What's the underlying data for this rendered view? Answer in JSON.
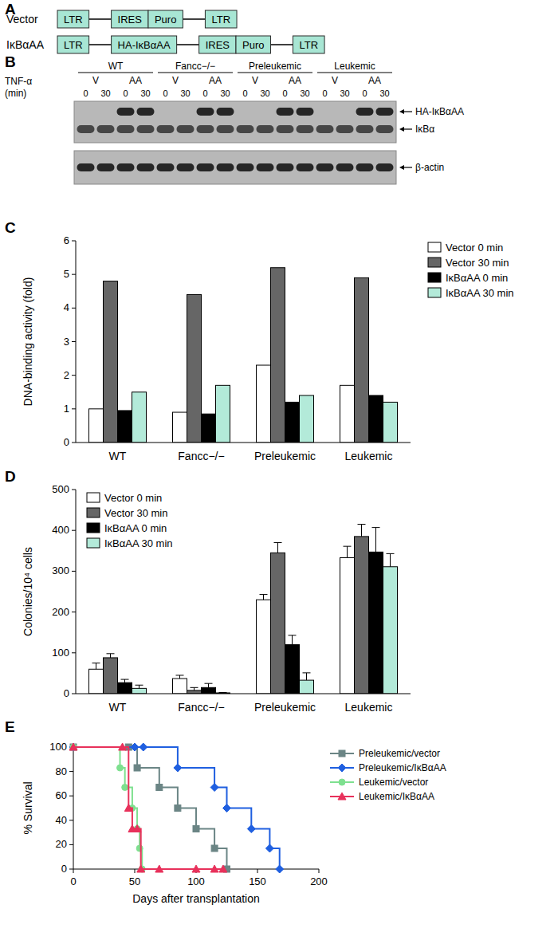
{
  "panel_a": {
    "label": "A",
    "constructs": [
      {
        "name": "Vector",
        "segments": [
          [
            "LTR"
          ],
          [
            "IRES",
            "Puro"
          ],
          [
            "LTR"
          ]
        ]
      },
      {
        "name": "IκBαAA",
        "segments": [
          [
            "LTR"
          ],
          [
            "HA-IκBαAA"
          ],
          [
            "IRES",
            "Puro"
          ],
          [
            "LTR"
          ]
        ]
      }
    ]
  },
  "panel_b": {
    "label": "B",
    "treatment": "TNF-α",
    "treatment_unit": "(min)",
    "groups": [
      {
        "name": "WT",
        "conditions": [
          {
            "name": "V",
            "times": [
              0,
              30
            ]
          },
          {
            "name": "AA",
            "times": [
              0,
              30
            ]
          }
        ]
      },
      {
        "name": "Fancc−/−",
        "conditions": [
          {
            "name": "V",
            "times": [
              0,
              30
            ]
          },
          {
            "name": "AA",
            "times": [
              0,
              30
            ]
          }
        ]
      },
      {
        "name": "Preleukemic",
        "conditions": [
          {
            "name": "V",
            "times": [
              0,
              30
            ]
          },
          {
            "name": "AA",
            "times": [
              0,
              30
            ]
          }
        ]
      },
      {
        "name": "Leukemic",
        "conditions": [
          {
            "name": "V",
            "times": [
              0,
              30
            ]
          },
          {
            "name": "AA",
            "times": [
              0,
              30
            ]
          }
        ]
      }
    ],
    "blots": [
      {
        "bands": [
          "HA-IκBαAA",
          "IκBα"
        ]
      },
      {
        "bands": [
          "β-actin"
        ]
      }
    ]
  },
  "chart_data": [
    {
      "type": "bar",
      "title": "C",
      "y_label": "DNA-binding activity (fold)",
      "categories": [
        "WT",
        "Fancc−/−",
        "Preleukemic",
        "Leukemic"
      ],
      "series": [
        {
          "name": "Vector 0 min",
          "color": "#ffffff",
          "values": [
            1.0,
            0.9,
            2.3,
            1.7
          ]
        },
        {
          "name": "Vector 30 min",
          "color": "#666666",
          "values": [
            4.8,
            4.4,
            5.2,
            4.9
          ]
        },
        {
          "name": "IκBαAA 0 min",
          "color": "#000000",
          "values": [
            0.95,
            0.85,
            1.2,
            1.4
          ]
        },
        {
          "name": "IκBαAA 30 min",
          "color": "#b3ead9",
          "values": [
            1.5,
            1.7,
            1.4,
            1.2
          ]
        }
      ],
      "ylim": [
        0,
        6
      ],
      "yticks": [
        0,
        1,
        2,
        3,
        4,
        5,
        6
      ],
      "legend": "right"
    },
    {
      "type": "bar",
      "title": "D",
      "y_label": "Colonies/10⁴ cells",
      "categories": [
        "WT",
        "Fancc−/−",
        "Preleukemic",
        "Leukemic"
      ],
      "series": [
        {
          "name": "Vector 0 min",
          "color": "#ffffff",
          "values": [
            60,
            37,
            230,
            333
          ],
          "errors": [
            15,
            8,
            13,
            28
          ]
        },
        {
          "name": "Vector 30 min",
          "color": "#666666",
          "values": [
            88,
            8,
            345,
            385
          ],
          "errors": [
            10,
            7,
            25,
            30
          ]
        },
        {
          "name": "IκBαAA 0 min",
          "color": "#000000",
          "values": [
            27,
            15,
            120,
            347
          ],
          "errors": [
            8,
            10,
            23,
            60
          ]
        },
        {
          "name": "IκBαAA 30 min",
          "color": "#b3ead9",
          "values": [
            13,
            2,
            33,
            311
          ],
          "errors": [
            8,
            1,
            18,
            32
          ]
        }
      ],
      "ylim": [
        0,
        500
      ],
      "yticks": [
        0,
        100,
        200,
        300,
        400,
        500
      ],
      "legend": "upper left"
    },
    {
      "type": "line",
      "title": "E",
      "x_label": "Days after transplantation",
      "y_label": "% Survival",
      "line_style": "step",
      "series": [
        {
          "name": "Preleukemic/vector",
          "color": "#6b8585",
          "marker": "square",
          "x": [
            0,
            45,
            52,
            70,
            85,
            100,
            115,
            125
          ],
          "values": [
            100,
            100,
            83,
            67,
            50,
            33,
            17,
            0
          ]
        },
        {
          "name": "Preleukemic/IκBαAA",
          "color": "#1f5fe0",
          "marker": "diamond",
          "x": [
            0,
            50,
            57,
            85,
            115,
            125,
            145,
            160,
            168
          ],
          "values": [
            100,
            100,
            100,
            83,
            67,
            50,
            33,
            17,
            0
          ]
        },
        {
          "name": "Leukemic/vector",
          "color": "#7ee08f",
          "marker": "circle",
          "x": [
            0,
            38,
            42,
            48,
            52,
            54,
            56
          ],
          "values": [
            100,
            83,
            67,
            50,
            33,
            17,
            0
          ]
        },
        {
          "name": "Leukemic/IκBαAA",
          "color": "#e8315b",
          "marker": "triangle",
          "x": [
            0,
            40,
            45,
            48,
            52,
            55,
            70,
            100,
            115,
            122
          ],
          "values": [
            100,
            100,
            50,
            33,
            33,
            0,
            0,
            0,
            0,
            0
          ]
        }
      ],
      "xlim": [
        0,
        200
      ],
      "xticks": [
        0,
        50,
        100,
        150,
        200
      ],
      "ylim": [
        0,
        100
      ],
      "yticks": [
        0,
        20,
        40,
        60,
        80,
        100
      ],
      "legend": "right"
    }
  ]
}
